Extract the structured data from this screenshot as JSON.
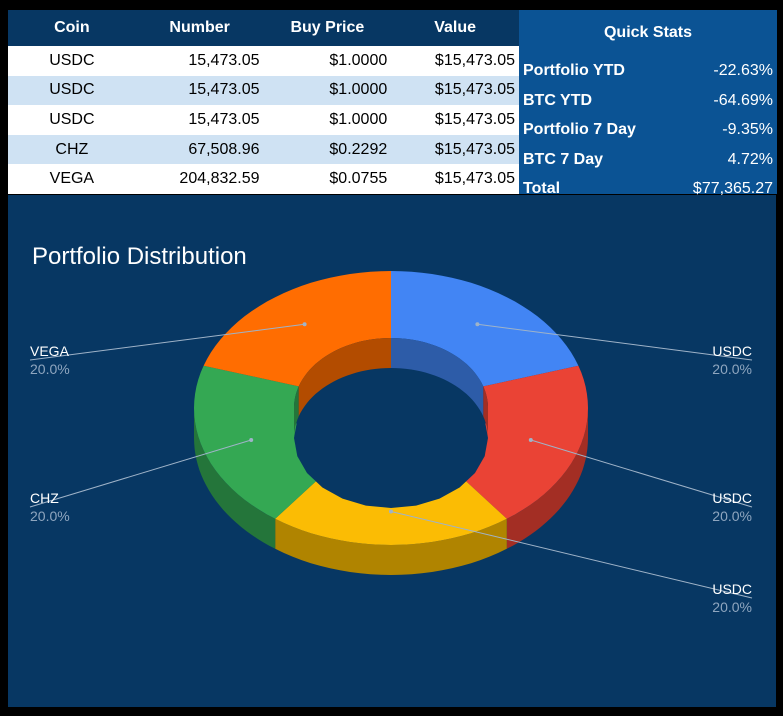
{
  "table": {
    "headers": [
      "Coin",
      "Number",
      "Buy Price",
      "Value"
    ],
    "rows": [
      {
        "coin": "USDC",
        "number": "15,473.05",
        "buy_price": "$1.0000",
        "value": "$15,473.05"
      },
      {
        "coin": "USDC",
        "number": "15,473.05",
        "buy_price": "$1.0000",
        "value": "$15,473.05"
      },
      {
        "coin": "USDC",
        "number": "15,473.05",
        "buy_price": "$1.0000",
        "value": "$15,473.05"
      },
      {
        "coin": "CHZ",
        "number": "67,508.96",
        "buy_price": "$0.2292",
        "value": "$15,473.05"
      },
      {
        "coin": "VEGA",
        "number": "204,832.59",
        "buy_price": "$0.0755",
        "value": "$15,473.05"
      }
    ]
  },
  "quick_stats": {
    "title": "Quick Stats",
    "rows": [
      {
        "label": "Portfolio YTD",
        "value": "-22.63%"
      },
      {
        "label": "BTC YTD",
        "value": "-64.69%"
      },
      {
        "label": "Portfolio 7 Day",
        "value": "-9.35%"
      },
      {
        "label": "BTC 7 Day",
        "value": "4.72%"
      },
      {
        "label": "Total",
        "value": "$77,365.27"
      }
    ]
  },
  "chart_data": {
    "type": "pie",
    "title": "Portfolio Distribution",
    "slices": [
      {
        "label": "USDC",
        "value": 20.0,
        "percent_label": "20.0%",
        "color": "#4285f4",
        "shade": "#2d5ca8"
      },
      {
        "label": "USDC",
        "value": 20.0,
        "percent_label": "20.0%",
        "color": "#ea4335",
        "shade": "#a32e24"
      },
      {
        "label": "USDC",
        "value": 20.0,
        "percent_label": "20.0%",
        "color": "#fbbc04",
        "shade": "#b08400"
      },
      {
        "label": "CHZ",
        "value": 20.0,
        "percent_label": "20.0%",
        "color": "#34a853",
        "shade": "#24753a"
      },
      {
        "label": "VEGA",
        "value": 20.0,
        "percent_label": "20.0%",
        "color": "#ff6d01",
        "shade": "#b34c00"
      }
    ],
    "style": "3d-donut",
    "legend": "labels-with-lines"
  }
}
